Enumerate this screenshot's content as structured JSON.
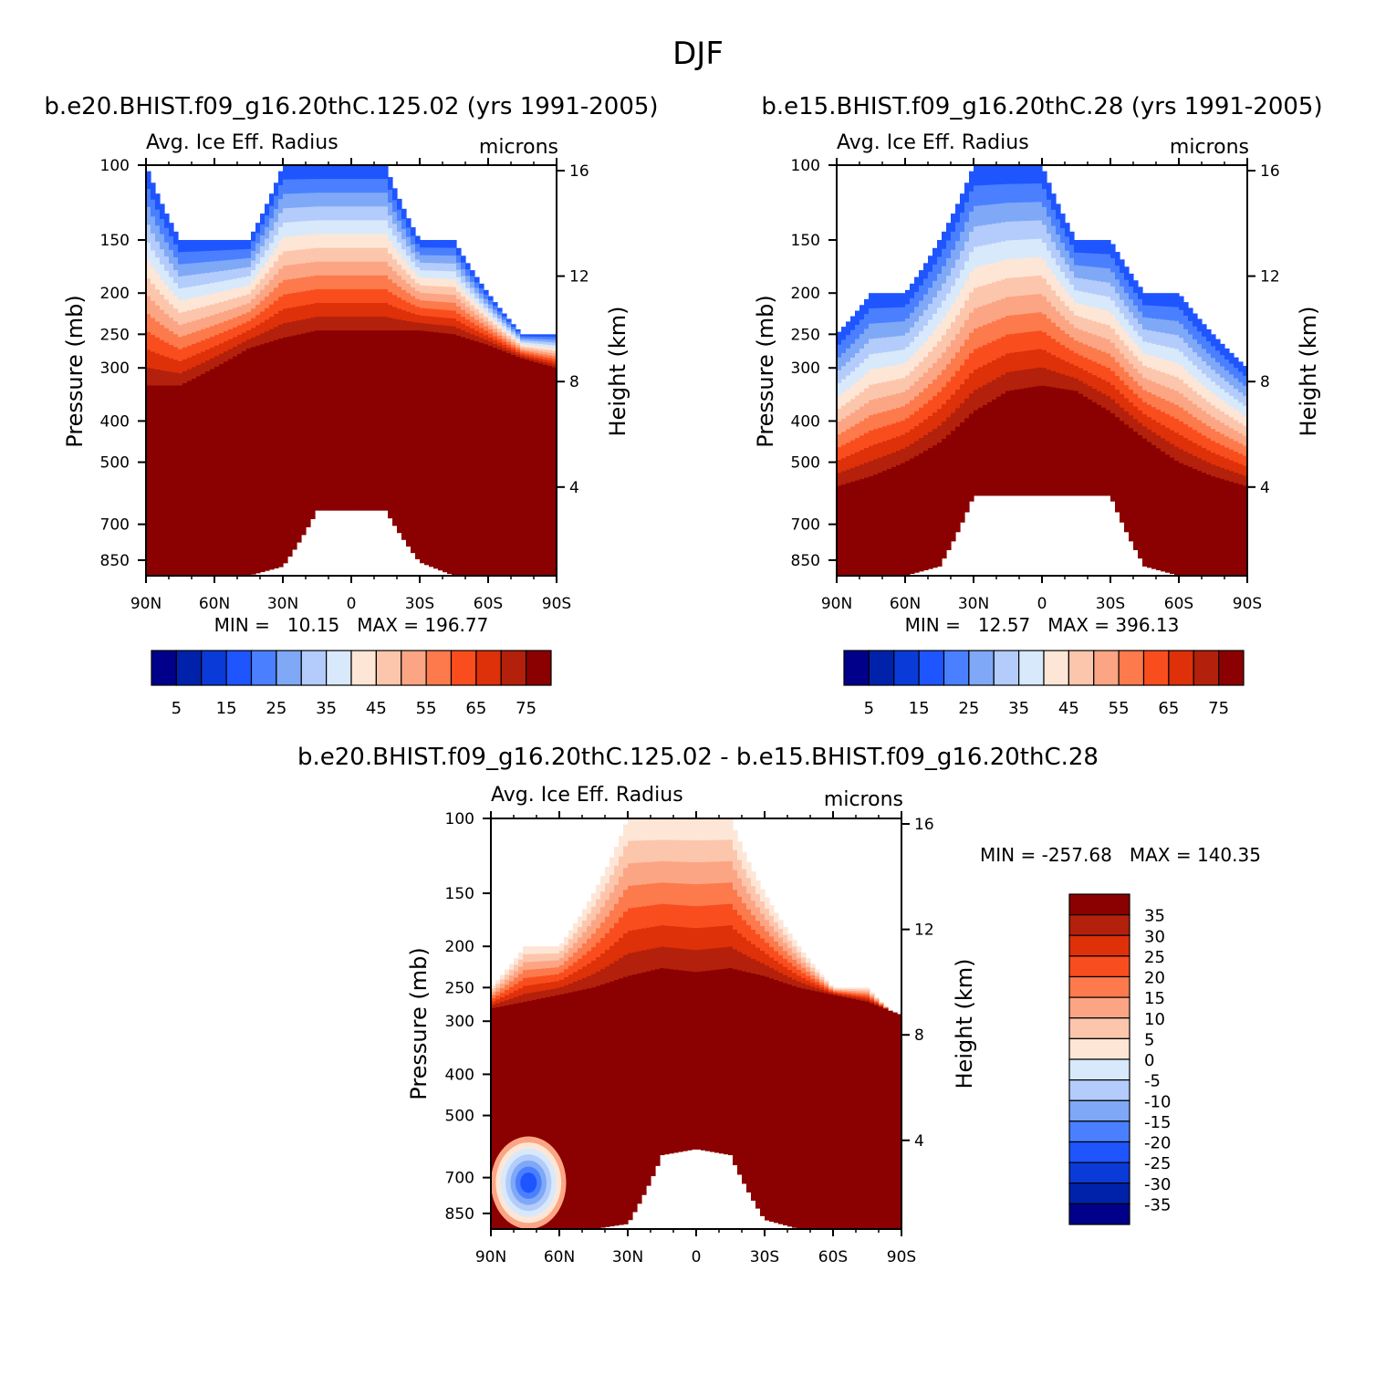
{
  "figure": {
    "title": "DJF"
  },
  "colors": {
    "scale_main": [
      "#00008a",
      "#0022aa",
      "#0a3ad8",
      "#1e55ff",
      "#4a80ff",
      "#7fa8f7",
      "#b3ccfb",
      "#d8e9fb",
      "#fee6d6",
      "#fcc6ad",
      "#fca584",
      "#fc7a4b",
      "#fa4d1e",
      "#de3009",
      "#b3200b",
      "#8b0000"
    ],
    "scale_diff": [
      "#00008a",
      "#0022aa",
      "#0a3ad8",
      "#1e55ff",
      "#4a80ff",
      "#7fa8f7",
      "#b3ccfb",
      "#d8e9fb",
      "#fee6d6",
      "#fcc6ad",
      "#fca584",
      "#fc7a4b",
      "#fa4d1e",
      "#de3009",
      "#b3200b",
      "#8b0000"
    ]
  },
  "chart_data": [
    {
      "type": "heatmap",
      "id": "p1",
      "title": "b.e20.BHIST.f09_g16.20thC.125.02 (yrs 1991-2005)",
      "left_label": "Avg. Ice Eff. Radius",
      "right_label": "microns",
      "xlabel": "",
      "ylabel": "Pressure (mb)",
      "y2label": "Height (km)",
      "x_tick_labels": [
        "90N",
        "60N",
        "30N",
        "0",
        "30S",
        "60S",
        "90S"
      ],
      "x_tick_values": [
        90,
        60,
        30,
        0,
        -30,
        -60,
        -90
      ],
      "y_tick_labels": [
        "100",
        "150",
        "200",
        "250",
        "300",
        "400",
        "500",
        "700",
        "850"
      ],
      "y_tick_values": [
        100,
        150,
        200,
        250,
        300,
        400,
        500,
        700,
        850
      ],
      "y2_tick_labels": [
        "16",
        "12",
        "8",
        "4"
      ],
      "y2_tick_values": [
        16,
        12,
        8,
        4
      ],
      "ylim": [
        100,
        925
      ],
      "stats": "MIN =   10.15   MAX = 196.77",
      "levels": [
        5,
        10,
        15,
        20,
        25,
        30,
        35,
        40,
        45,
        50,
        55,
        60,
        65,
        70,
        75
      ],
      "colorbar_labels": [
        "5",
        "15",
        "25",
        "35",
        "45",
        "55",
        "65",
        "75"
      ],
      "colorbar_orientation": "horizontal",
      "profile": {
        "lat": [
          90,
          75,
          60,
          45,
          30,
          15,
          0,
          -15,
          -30,
          -45,
          -60,
          -75,
          -90
        ],
        "top_pressure": [
          100,
          150,
          150,
          150,
          100,
          100,
          100,
          100,
          150,
          150,
          200,
          250,
          250
        ],
        "saturation_pressure": [
          330,
          330,
          300,
          270,
          255,
          245,
          245,
          245,
          245,
          250,
          265,
          285,
          300
        ],
        "ground_pressure": [
          925,
          925,
          925,
          925,
          880,
          650,
          650,
          650,
          860,
          925,
          925,
          925,
          925
        ]
      }
    },
    {
      "type": "heatmap",
      "id": "p2",
      "title": "b.e15.BHIST.f09_g16.20thC.28 (yrs 1991-2005)",
      "left_label": "Avg. Ice Eff. Radius",
      "right_label": "microns",
      "xlabel": "",
      "ylabel": "Pressure (mb)",
      "y2label": "Height (km)",
      "x_tick_labels": [
        "90N",
        "60N",
        "30N",
        "0",
        "30S",
        "60S",
        "90S"
      ],
      "x_tick_values": [
        90,
        60,
        30,
        0,
        -30,
        -60,
        -90
      ],
      "y_tick_labels": [
        "100",
        "150",
        "200",
        "250",
        "300",
        "400",
        "500",
        "700",
        "850"
      ],
      "y_tick_values": [
        100,
        150,
        200,
        250,
        300,
        400,
        500,
        700,
        850
      ],
      "y2_tick_labels": [
        "16",
        "12",
        "8",
        "4"
      ],
      "y2_tick_values": [
        16,
        12,
        8,
        4
      ],
      "ylim": [
        100,
        925
      ],
      "stats": "MIN =   12.57   MAX = 396.13",
      "levels": [
        5,
        10,
        15,
        20,
        25,
        30,
        35,
        40,
        45,
        50,
        55,
        60,
        65,
        70,
        75
      ],
      "colorbar_labels": [
        "5",
        "15",
        "25",
        "35",
        "45",
        "55",
        "65",
        "75"
      ],
      "colorbar_orientation": "horizontal",
      "profile": {
        "lat": [
          90,
          75,
          60,
          45,
          30,
          15,
          0,
          -15,
          -30,
          -45,
          -60,
          -75,
          -90
        ],
        "top_pressure": [
          250,
          200,
          200,
          150,
          100,
          100,
          100,
          150,
          150,
          200,
          200,
          250,
          300
        ],
        "saturation_pressure": [
          570,
          540,
          500,
          450,
          380,
          340,
          330,
          340,
          380,
          440,
          500,
          540,
          570
        ],
        "ground_pressure": [
          925,
          925,
          925,
          880,
          600,
          600,
          600,
          600,
          600,
          880,
          925,
          925,
          925
        ]
      }
    },
    {
      "type": "heatmap",
      "id": "p3",
      "title": "b.e20.BHIST.f09_g16.20thC.125.02 - b.e15.BHIST.f09_g16.20thC.28",
      "left_label": "Avg. Ice Eff. Radius",
      "right_label": "microns",
      "xlabel": "",
      "ylabel": "Pressure (mb)",
      "y2label": "Height (km)",
      "x_tick_labels": [
        "90N",
        "60N",
        "30N",
        "0",
        "30S",
        "60S",
        "90S"
      ],
      "x_tick_values": [
        90,
        60,
        30,
        0,
        -30,
        -60,
        -90
      ],
      "y_tick_labels": [
        "100",
        "150",
        "200",
        "250",
        "300",
        "400",
        "500",
        "700",
        "850"
      ],
      "y_tick_values": [
        100,
        150,
        200,
        250,
        300,
        400,
        500,
        700,
        850
      ],
      "y2_tick_labels": [
        "16",
        "12",
        "8",
        "4"
      ],
      "y2_tick_values": [
        16,
        12,
        8,
        4
      ],
      "ylim": [
        100,
        925
      ],
      "stats": "MIN = -257.68   MAX = 140.35",
      "levels": [
        -35,
        -30,
        -25,
        -20,
        -15,
        -10,
        -5,
        0,
        5,
        10,
        15,
        20,
        25,
        30,
        35
      ],
      "colorbar_labels": [
        "35",
        "30",
        "25",
        "20",
        "15",
        "10",
        "5",
        "0",
        "-5",
        "-10",
        "-15",
        "-20",
        "-25",
        "-30",
        "-35"
      ],
      "colorbar_orientation": "vertical",
      "profile": {
        "lat": [
          90,
          75,
          60,
          45,
          30,
          15,
          0,
          -15,
          -30,
          -45,
          -60,
          -75,
          -90
        ],
        "top_pressure": [
          250,
          200,
          200,
          150,
          100,
          100,
          100,
          100,
          150,
          200,
          250,
          250,
          300
        ],
        "saturation_pressure": [
          280,
          270,
          260,
          250,
          235,
          225,
          230,
          225,
          235,
          250,
          260,
          270,
          290
        ],
        "ground_pressure": [
          925,
          925,
          925,
          925,
          900,
          620,
          600,
          620,
          880,
          925,
          925,
          925,
          925
        ]
      },
      "anomaly_region": {
        "lat_range": [
          90,
          57
        ],
        "pressure_range": [
          560,
          925
        ],
        "label": "negative"
      }
    }
  ]
}
